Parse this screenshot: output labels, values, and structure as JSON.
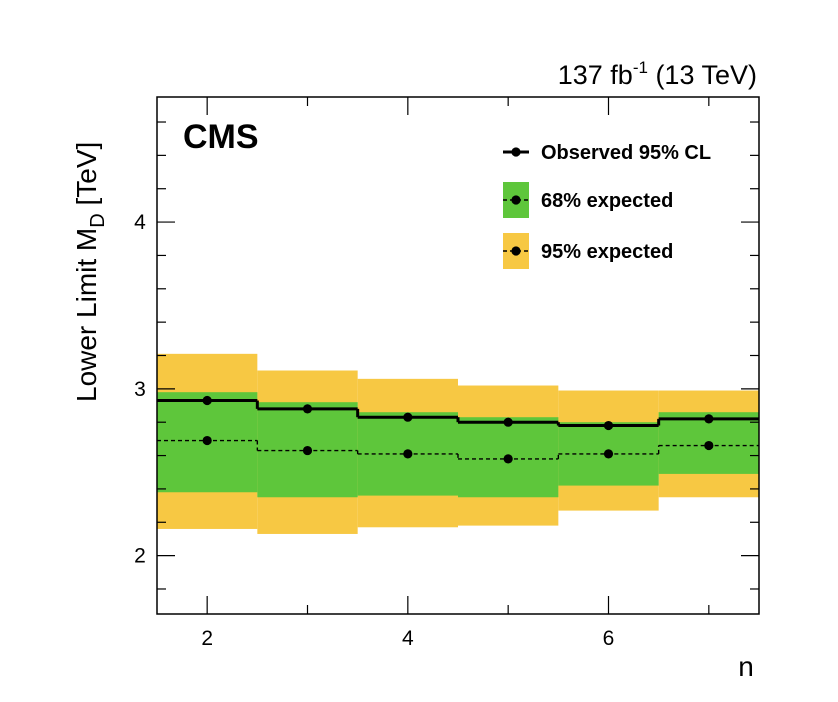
{
  "chart_data": {
    "type": "line",
    "title": "",
    "experiment_label": "CMS",
    "luminosity_label": {
      "value": "137 fb",
      "superscript": "-1",
      "energy": "(13 TeV)"
    },
    "xlabel": "n",
    "ylabel": {
      "main": "Lower Limit M",
      "subscript": "D",
      "unit": "[TeV]"
    },
    "xlim": [
      1.5,
      7.5
    ],
    "ylim": [
      1.65,
      4.75
    ],
    "x_ticks": [
      2,
      4,
      6
    ],
    "y_ticks": [
      2,
      3,
      4
    ],
    "x": [
      2,
      3,
      4,
      5,
      6,
      7
    ],
    "series": [
      {
        "name": "Observed 95% CL",
        "values": [
          2.93,
          2.88,
          2.83,
          2.8,
          2.78,
          2.82
        ],
        "style": "solid",
        "color": "#000000"
      },
      {
        "name": "Expected",
        "values": [
          2.69,
          2.63,
          2.61,
          2.58,
          2.61,
          2.66
        ],
        "style": "dashed",
        "color": "#000000"
      }
    ],
    "bands": [
      {
        "name": "95% expected",
        "color": "#f7c843",
        "lower": [
          2.16,
          2.13,
          2.17,
          2.18,
          2.27,
          2.35
        ],
        "upper": [
          3.21,
          3.11,
          3.06,
          3.02,
          2.99,
          2.99
        ]
      },
      {
        "name": "68% expected",
        "color": "#5ec63b",
        "lower": [
          2.38,
          2.35,
          2.36,
          2.35,
          2.42,
          2.49
        ],
        "upper": [
          2.98,
          2.92,
          2.86,
          2.83,
          2.8,
          2.86
        ]
      }
    ],
    "legend": {
      "placement": "top-right",
      "entries": [
        {
          "label": "Observed 95% CL",
          "kind": "line"
        },
        {
          "label": "68% expected",
          "kind": "band",
          "color": "#5ec63b"
        },
        {
          "label": "95% expected",
          "kind": "band",
          "color": "#f7c843"
        }
      ]
    },
    "grid": false
  }
}
